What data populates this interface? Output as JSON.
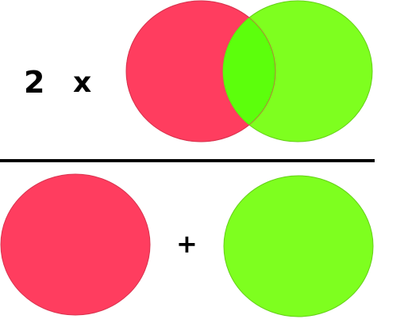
{
  "numerator": {
    "coefficient": "2",
    "times_symbol": "x",
    "shape": "overlapping-circles-intersection",
    "left_circle_color": "#ff3d5f",
    "right_circle_color": "#7eff1f",
    "overlap_color": "#5cff0c"
  },
  "denominator": {
    "plus_symbol": "+",
    "left_circle_color": "#ff3d5f",
    "right_circle_color": "#7eff1f"
  },
  "fraction_bar_color": "#000000"
}
